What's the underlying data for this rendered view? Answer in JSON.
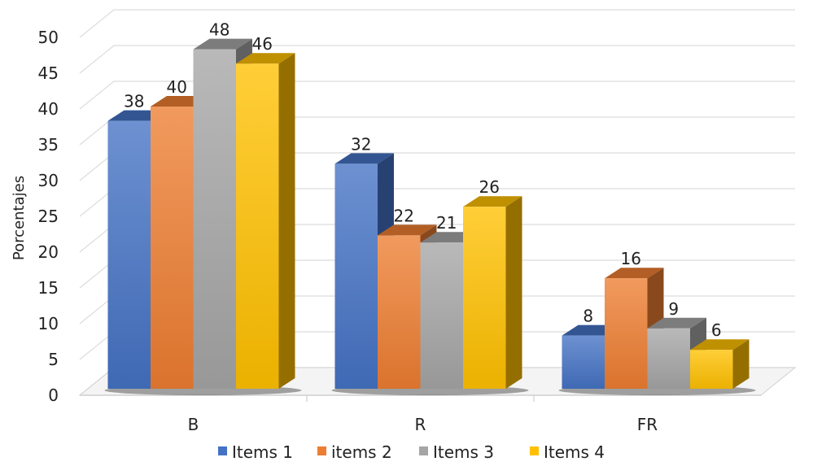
{
  "chart_data": {
    "type": "bar",
    "title": "",
    "xlabel": "",
    "ylabel": "Porcentajes",
    "ylim": [
      0,
      50
    ],
    "yticks": [
      0,
      5,
      10,
      15,
      20,
      25,
      30,
      35,
      40,
      45,
      50
    ],
    "grid": true,
    "legend_position": "bottom",
    "categories": [
      "B",
      "R",
      "FR"
    ],
    "series": [
      {
        "name": "Items 1",
        "values": [
          38,
          32,
          8
        ],
        "color": "#4472C4"
      },
      {
        "name": "items 2",
        "values": [
          40,
          22,
          16
        ],
        "color": "#ED7D31"
      },
      {
        "name": "Items 3",
        "values": [
          48,
          21,
          9
        ],
        "color": "#A5A5A5"
      },
      {
        "name": "Items 4",
        "values": [
          46,
          26,
          6
        ],
        "color": "#FFC000"
      }
    ]
  }
}
